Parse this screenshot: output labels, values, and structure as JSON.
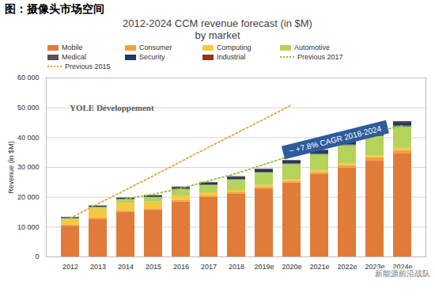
{
  "chart_data": {
    "type": "bar",
    "header": "图：摄像头市场空间",
    "title": "2012-2024 CCM revenue forecast (in $M)",
    "subtitle": "by market",
    "y_label": "Revenue (in $M)",
    "annotations": [
      "~ +7.8% CAGR 2018-2024"
    ],
    "logo_text": "YOLE Développement",
    "watermark": "新能源前沿战队",
    "stacked": true,
    "grid": true,
    "legend": "top",
    "categories": [
      "2012",
      "2013",
      "2014",
      "2015",
      "2016",
      "2017",
      "2018",
      "2019e",
      "2020e",
      "2021e",
      "2022e",
      "2023e",
      "2024e"
    ],
    "ylim": [
      0,
      60000
    ],
    "yticks": [
      0,
      {
        "value": 10000,
        "label": "10 000"
      },
      {
        "value": 20000,
        "label": "20 000"
      },
      {
        "value": 30000,
        "label": "30 000"
      },
      {
        "value": 40000,
        "label": "40 000"
      },
      {
        "value": 50000,
        "label": "50 000"
      },
      {
        "value": 60000,
        "label": "60 000"
      }
    ],
    "series": [
      {
        "name": "Mobile",
        "color": "#E07B39",
        "values": [
          10300,
          12500,
          15000,
          15600,
          18400,
          20000,
          21000,
          22800,
          24800,
          27600,
          29800,
          32300,
          34700
        ]
      },
      {
        "name": "Consumer",
        "color": "#F0A040",
        "values": [
          400,
          500,
          500,
          500,
          500,
          500,
          500,
          500,
          500,
          700,
          800,
          900,
          1000
        ]
      },
      {
        "name": "Computing",
        "color": "#F5C842",
        "values": [
          1600,
          3000,
          2500,
          2300,
          1500,
          1000,
          800,
          700,
          700,
          700,
          700,
          700,
          700
        ]
      },
      {
        "name": "Automotive",
        "color": "#B5D25A",
        "values": [
          500,
          600,
          1200,
          1500,
          2200,
          2500,
          3500,
          4200,
          5000,
          5300,
          6000,
          6500,
          7200
        ]
      },
      {
        "name": "Medical",
        "color": "#555555",
        "values": [
          100,
          100,
          100,
          100,
          100,
          150,
          150,
          200,
          200,
          250,
          250,
          300,
          300
        ]
      },
      {
        "name": "Security",
        "color": "#1F3864",
        "values": [
          300,
          300,
          400,
          500,
          600,
          700,
          800,
          900,
          1000,
          1000,
          1100,
          1200,
          1200
        ]
      },
      {
        "name": "Industrial",
        "color": "#8B3A1A",
        "values": [
          100,
          100,
          100,
          100,
          150,
          150,
          200,
          200,
          200,
          250,
          250,
          300,
          300
        ]
      },
      {
        "name": "Previous 2017",
        "type": "line",
        "line_style": "dotted",
        "color": "#9BBB3A",
        "values": [
          null,
          null,
          19500,
          21000,
          23000,
          25500,
          28000,
          31000,
          34000,
          37000,
          40000,
          42000,
          44000
        ]
      },
      {
        "name": "Previous 2015",
        "type": "line",
        "line_style": "dotted",
        "color": "#E8A33A",
        "values": [
          13000,
          17800,
          22500,
          27200,
          32000,
          36800,
          41500,
          46200,
          51000,
          null,
          null,
          null,
          null
        ]
      }
    ]
  }
}
